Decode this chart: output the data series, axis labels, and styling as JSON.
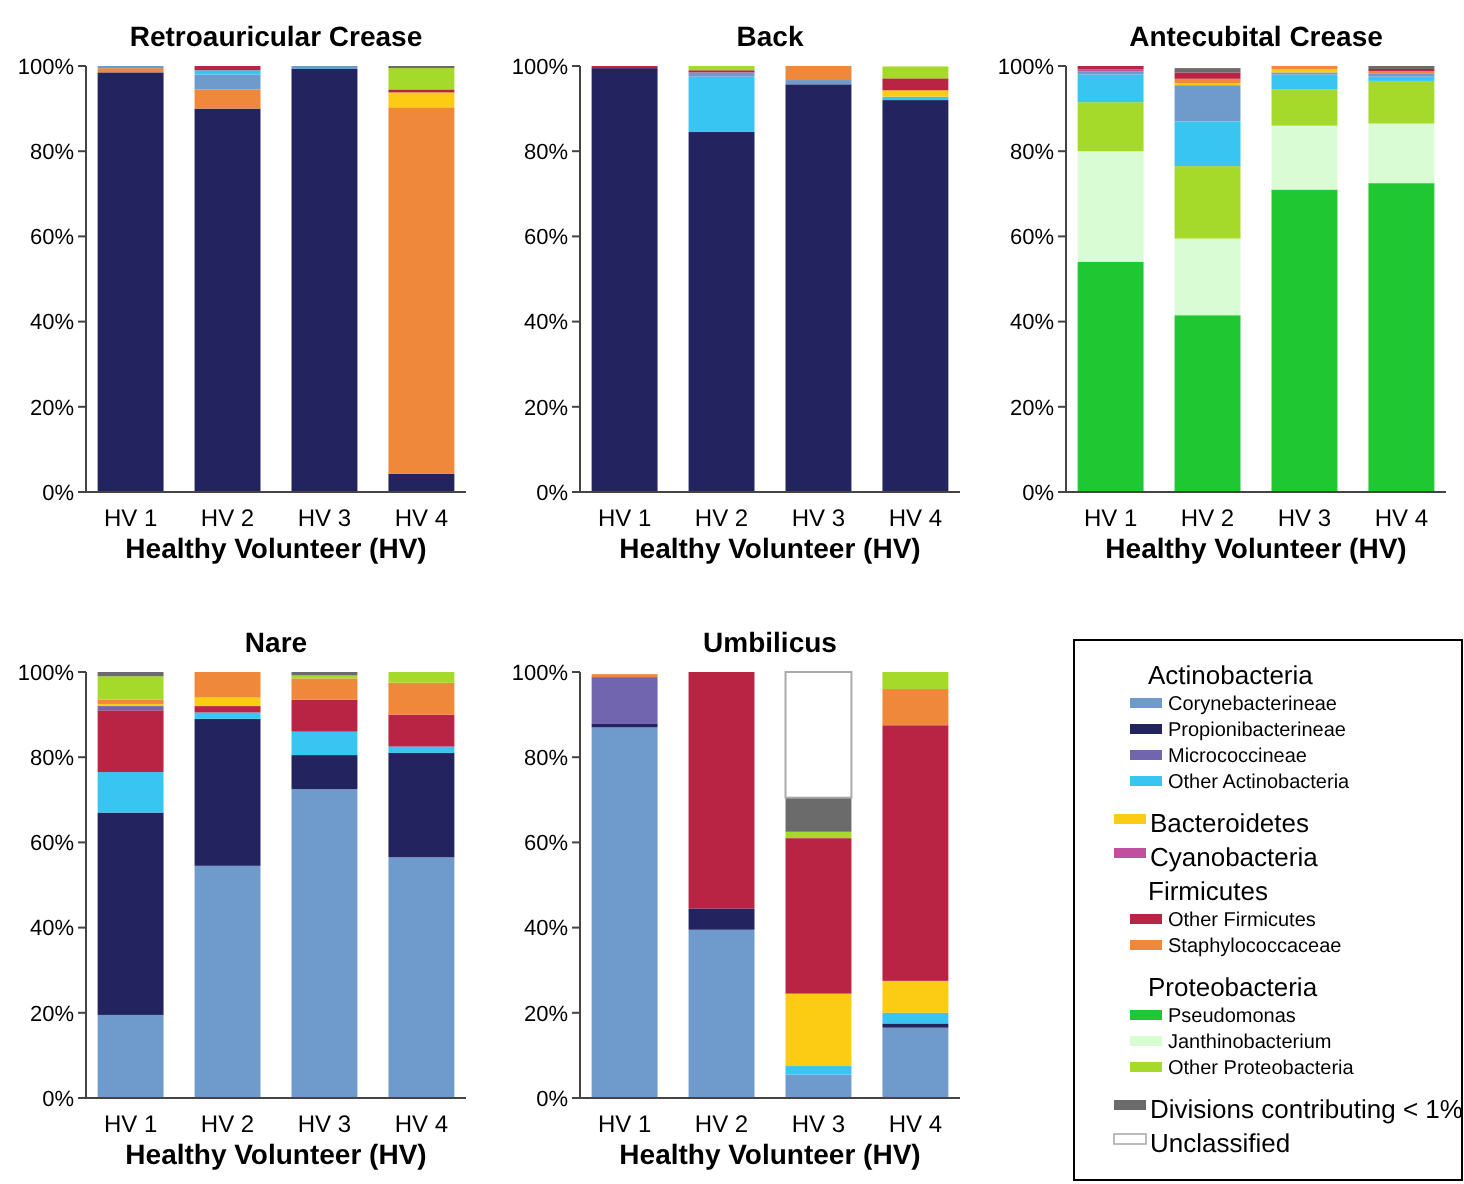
{
  "chart_data": [
    {
      "type": "bar",
      "stacked": true,
      "title": "Retroauricular Crease",
      "xlabel": "Healthy Volunteer (HV)",
      "categories": [
        "HV 1",
        "HV 2",
        "HV 3",
        "HV 4"
      ],
      "ylim": [
        0,
        100
      ],
      "yticks": [
        {
          "value": 0,
          "label": "0%"
        },
        {
          "value": 20,
          "label": "20%"
        },
        {
          "value": 40,
          "label": "40%"
        },
        {
          "value": 60,
          "label": "60%"
        },
        {
          "value": 80,
          "label": "80%"
        },
        {
          "value": 100,
          "label": "100%"
        }
      ],
      "grid": false,
      "series": [
        {
          "color": "#23235f",
          "values": [
            98.5,
            90,
            99.3,
            4.3
          ]
        },
        {
          "color": "#f0883c",
          "values": [
            1,
            4.5,
            0,
            86
          ]
        },
        {
          "color": "#fccb14",
          "values": [
            0,
            0,
            0,
            3.5
          ]
        },
        {
          "color": "#6f9bcc",
          "values": [
            0.5,
            3.5,
            0.7,
            0
          ]
        },
        {
          "color": "#38c5f2",
          "values": [
            0,
            1,
            0,
            0
          ]
        },
        {
          "color": "#ba2444",
          "values": [
            0,
            1,
            0,
            0.7
          ]
        },
        {
          "color": "#a5d92a",
          "values": [
            0,
            0,
            0,
            5
          ]
        },
        {
          "color": "#6b6b6b",
          "values": [
            0,
            0,
            0,
            0.5
          ]
        }
      ]
    },
    {
      "type": "bar",
      "stacked": true,
      "title": "Back",
      "xlabel": "Healthy Volunteer (HV)",
      "categories": [
        "HV 1",
        "HV 2",
        "HV 3",
        "HV 4"
      ],
      "ylim": [
        0,
        100
      ],
      "yticks": [
        {
          "value": 0,
          "label": "0%"
        },
        {
          "value": 20,
          "label": "20%"
        },
        {
          "value": 40,
          "label": "40%"
        },
        {
          "value": 60,
          "label": "60%"
        },
        {
          "value": 80,
          "label": "80%"
        },
        {
          "value": 100,
          "label": "100%"
        }
      ],
      "grid": false,
      "series": [
        {
          "color": "#23235f",
          "values": [
            99.5,
            84.5,
            95.7,
            92
          ]
        },
        {
          "color": "#38c5f2",
          "values": [
            0,
            13,
            0,
            0.8
          ]
        },
        {
          "color": "#6f9bcc",
          "values": [
            0,
            1,
            1,
            0
          ]
        },
        {
          "color": "#fccb14",
          "values": [
            0,
            0,
            0,
            1.5
          ]
        },
        {
          "color": "#ba2444",
          "values": [
            0.5,
            0.5,
            0,
            2.8
          ]
        },
        {
          "color": "#f0883c",
          "values": [
            0,
            0,
            3.3,
            0
          ]
        },
        {
          "color": "#a5d92a",
          "values": [
            0,
            1,
            0,
            2.8
          ]
        }
      ]
    },
    {
      "type": "bar",
      "stacked": true,
      "title": "Antecubital Crease",
      "xlabel": "Healthy Volunteer (HV)",
      "categories": [
        "HV 1",
        "HV 2",
        "HV 3",
        "HV 4"
      ],
      "ylim": [
        0,
        100
      ],
      "yticks": [
        {
          "value": 0,
          "label": "0%"
        },
        {
          "value": 20,
          "label": "20%"
        },
        {
          "value": 40,
          "label": "40%"
        },
        {
          "value": 60,
          "label": "60%"
        },
        {
          "value": 80,
          "label": "80%"
        },
        {
          "value": 100,
          "label": "100%"
        }
      ],
      "grid": false,
      "series": [
        {
          "color": "#1fc832",
          "values": [
            54,
            41.5,
            71,
            72.5
          ]
        },
        {
          "color": "#d9fcd5",
          "values": [
            26,
            18,
            15,
            14
          ]
        },
        {
          "color": "#a5d92a",
          "values": [
            11.5,
            17,
            8.5,
            10
          ]
        },
        {
          "color": "#38c5f2",
          "values": [
            6.5,
            10.5,
            3.5,
            1
          ]
        },
        {
          "color": "#6f9bcc",
          "values": [
            0.7,
            8.5,
            0.5,
            0.8
          ]
        },
        {
          "color": "#c04fa0",
          "values": [
            0.5,
            0,
            0,
            0
          ]
        },
        {
          "color": "#fccb14",
          "values": [
            0,
            0.5,
            0.8,
            0
          ]
        },
        {
          "color": "#f0883c",
          "values": [
            0,
            1,
            0.7,
            0.5
          ]
        },
        {
          "color": "#ba2444",
          "values": [
            0.8,
            1.5,
            0,
            0.5
          ]
        },
        {
          "color": "#6b6b6b",
          "values": [
            0,
            1,
            0,
            0.7
          ]
        }
      ]
    },
    {
      "type": "bar",
      "stacked": true,
      "title": "Nare",
      "xlabel": "Healthy Volunteer (HV)",
      "categories": [
        "HV 1",
        "HV 2",
        "HV 3",
        "HV 4"
      ],
      "ylim": [
        0,
        100
      ],
      "yticks": [
        {
          "value": 0,
          "label": "0%"
        },
        {
          "value": 20,
          "label": "20%"
        },
        {
          "value": 40,
          "label": "40%"
        },
        {
          "value": 60,
          "label": "60%"
        },
        {
          "value": 80,
          "label": "80%"
        },
        {
          "value": 100,
          "label": "100%"
        }
      ],
      "grid": false,
      "series": [
        {
          "color": "#6f9bcc",
          "values": [
            19.5,
            54.5,
            72.5,
            56.5
          ]
        },
        {
          "color": "#23235f",
          "values": [
            47.5,
            34.5,
            8,
            24.5
          ]
        },
        {
          "color": "#38c5f2",
          "values": [
            9.5,
            1.5,
            5.5,
            1.5
          ]
        },
        {
          "color": "#ba2444",
          "values": [
            14.5,
            1.5,
            7.5,
            7.5
          ]
        },
        {
          "color": "#7065ae",
          "values": [
            1,
            0,
            0,
            0
          ]
        },
        {
          "color": "#fccb14",
          "values": [
            0.5,
            2,
            0,
            0
          ]
        },
        {
          "color": "#f0883c",
          "values": [
            1,
            6,
            5,
            7.5
          ]
        },
        {
          "color": "#a5d92a",
          "values": [
            5.5,
            0,
            0.7,
            2.5
          ]
        },
        {
          "color": "#6b6b6b",
          "values": [
            1,
            0,
            0.8,
            0
          ]
        }
      ]
    },
    {
      "type": "bar",
      "stacked": true,
      "title": "Umbilicus",
      "xlabel": "Healthy Volunteer (HV)",
      "categories": [
        "HV 1",
        "HV 2",
        "HV 3",
        "HV 4"
      ],
      "ylim": [
        0,
        100
      ],
      "yticks": [
        {
          "value": 0,
          "label": "0%"
        },
        {
          "value": 20,
          "label": "20%"
        },
        {
          "value": 40,
          "label": "40%"
        },
        {
          "value": 60,
          "label": "60%"
        },
        {
          "value": 80,
          "label": "80%"
        },
        {
          "value": 100,
          "label": "100%"
        }
      ],
      "grid": false,
      "legend": "right",
      "annotations": [
        "Actinobacteria",
        "Firmicutes",
        "Proteobacteria"
      ],
      "series": [
        {
          "name": "Corynebacterineae",
          "color": "#6f9bcc",
          "values": [
            87,
            39.5,
            5.5,
            16.5
          ]
        },
        {
          "name": "Propionibacterineae",
          "color": "#23235f",
          "values": [
            0.8,
            5,
            0,
            1
          ]
        },
        {
          "name": "Micrococcineae",
          "color": "#7065ae",
          "values": [
            11,
            0,
            0,
            0
          ]
        },
        {
          "name": "Other Actinobacteria",
          "color": "#38c5f2",
          "values": [
            0,
            0,
            2,
            2.5
          ]
        },
        {
          "name": "Bacteroidetes",
          "color": "#fccb14",
          "values": [
            0,
            0,
            17,
            7.5
          ]
        },
        {
          "name": "Cyanobacteria",
          "color": "#c04fa0",
          "values": [
            0,
            0,
            0,
            0
          ]
        },
        {
          "name": "Other Firmicutes",
          "color": "#ba2444",
          "values": [
            0,
            55.5,
            36.5,
            60
          ]
        },
        {
          "name": "Staphylococcaceae",
          "color": "#f0883c",
          "values": [
            0.7,
            0,
            0,
            8.5
          ]
        },
        {
          "name": "Pseudomonas",
          "color": "#1fc832",
          "values": [
            0,
            0,
            0,
            0
          ]
        },
        {
          "name": "Janthinobacterium",
          "color": "#d9fcd5",
          "values": [
            0,
            0,
            0,
            0
          ]
        },
        {
          "name": "Other Proteobacteria",
          "color": "#a5d92a",
          "values": [
            0,
            0,
            1.5,
            4
          ]
        },
        {
          "name": "Divisions contributing < 1%",
          "color": "#6b6b6b",
          "values": [
            0,
            0,
            8,
            0
          ]
        },
        {
          "name": "Unclassified",
          "color": "#ffffff",
          "values": [
            0,
            0,
            29.5,
            0
          ]
        }
      ]
    }
  ]
}
